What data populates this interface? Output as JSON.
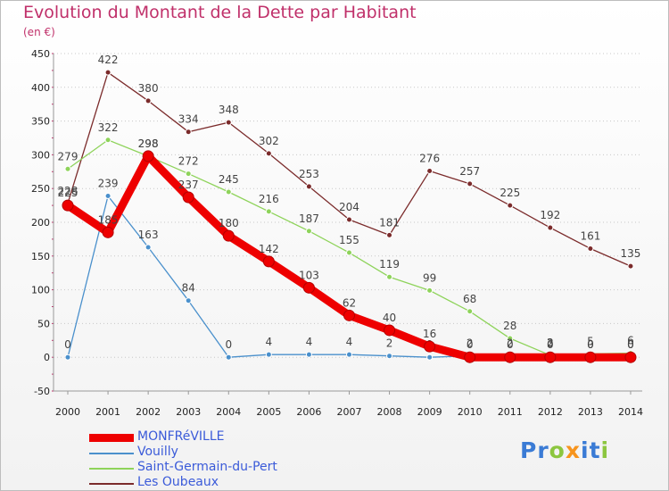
{
  "chart_data": {
    "type": "line",
    "title": "Evolution du Montant de la Dette par Habitant",
    "subtitle": "(en €)",
    "ylim": [
      -50,
      450
    ],
    "yticks": [
      -50,
      0,
      50,
      100,
      150,
      200,
      250,
      300,
      350,
      400,
      450
    ],
    "categories": [
      "2000",
      "2001",
      "2002",
      "2003",
      "2004",
      "2005",
      "2006",
      "2007",
      "2008",
      "2009",
      "2010",
      "2011",
      "2012",
      "2013",
      "2014"
    ],
    "series": [
      {
        "name": "Les Oubeaux",
        "color": "#7b2b2b",
        "values": [
          228,
          422,
          380,
          334,
          348,
          302,
          253,
          204,
          181,
          276,
          257,
          225,
          192,
          161,
          135
        ]
      },
      {
        "name": "Saint-Germain-du-Pert",
        "color": "#8ed35a",
        "values": [
          279,
          322,
          298,
          272,
          245,
          216,
          187,
          155,
          119,
          99,
          68,
          28,
          3,
          5,
          6
        ]
      },
      {
        "name": "Vouilly",
        "color": "#4a90cc",
        "values": [
          0,
          239,
          163,
          84,
          0,
          4,
          4,
          4,
          2,
          0,
          2,
          2,
          2,
          0,
          0
        ]
      },
      {
        "name": "MONFRéVILLE",
        "color": "#ee0000",
        "values": [
          225,
          185,
          298,
          237,
          180,
          142,
          103,
          62,
          40,
          16,
          0,
          0,
          0,
          0,
          0
        ]
      }
    ],
    "legend": [
      "MONFRéVILLE",
      "Vouilly",
      "Saint-Germain-du-Pert",
      "Les Oubeaux"
    ],
    "legend_position": "bottom-left"
  },
  "logo": {
    "letters": [
      "P",
      "r",
      "o",
      "x",
      "i",
      "t",
      "i"
    ],
    "colors": [
      "#3a7bd5",
      "#3a7bd5",
      "#8cc63f",
      "#f7941d",
      "#3a7bd5",
      "#3a7bd5",
      "#8cc63f"
    ]
  }
}
